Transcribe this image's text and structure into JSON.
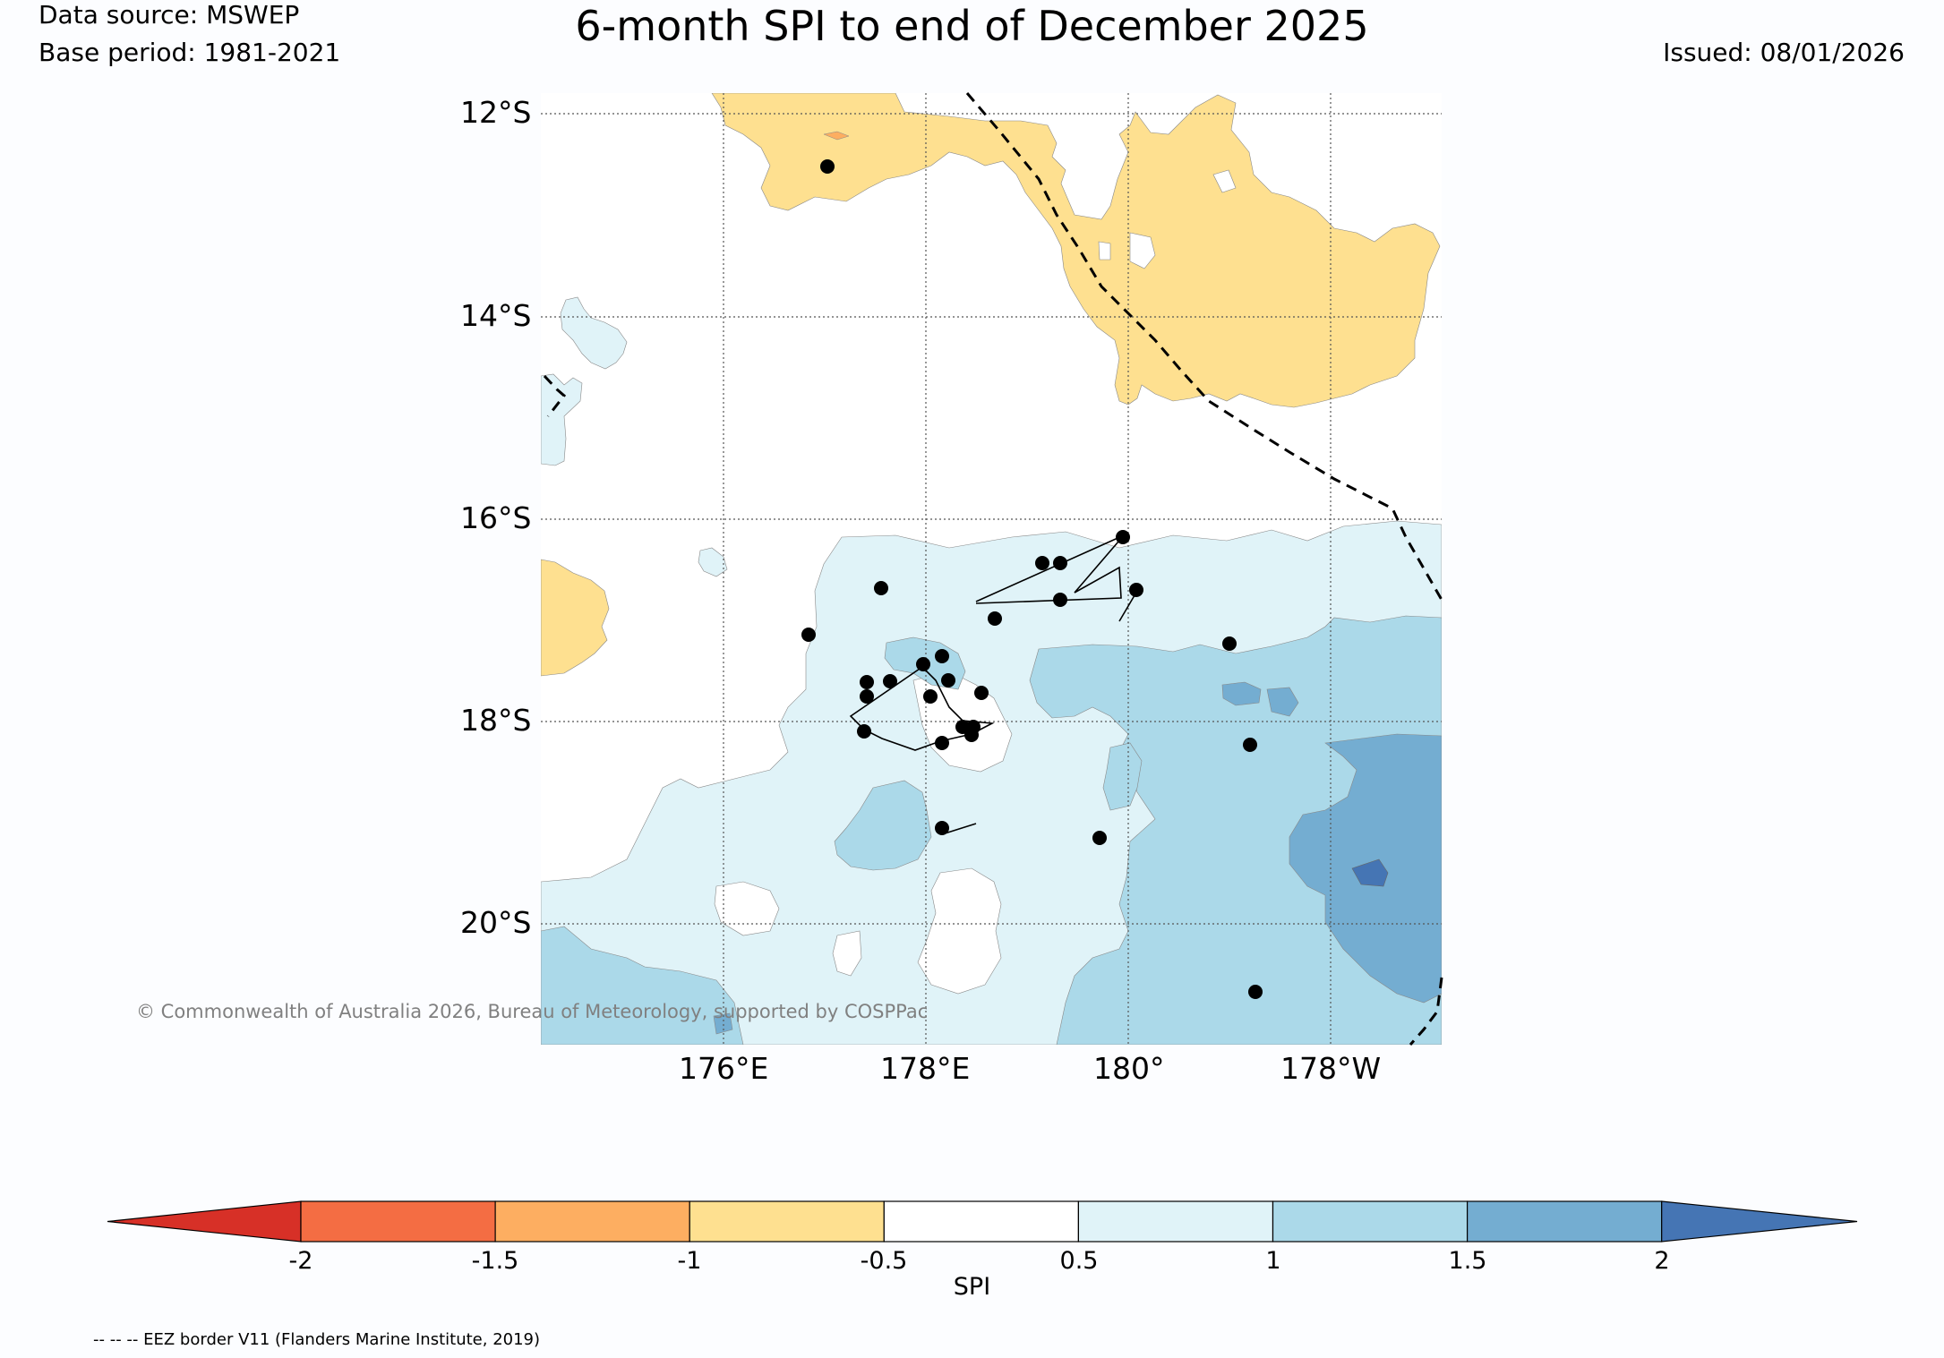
{
  "header": {
    "data_source": "Data source: MSWEP",
    "base_period": "Base period: 1981-2021",
    "title": "6-month SPI to end of December 2025",
    "issued": "Issued: 08/01/2026"
  },
  "map": {
    "lat_labels": [
      "12°S",
      "14°S",
      "16°S",
      "18°S",
      "20°S"
    ],
    "lon_labels": [
      "176°E",
      "178°E",
      "180°",
      "178°W"
    ],
    "copyright": "© Commonwealth of Australia 2026, Bureau of Meteorology, supported by COSPPac",
    "footnote": "-- -- -- EEZ border V11 (Flanders Marine Institute, 2019)"
  },
  "colorbar": {
    "label": "SPI",
    "ticks": [
      "-2",
      "-1.5",
      "-1",
      "-0.5",
      "0.5",
      "1",
      "1.5",
      "2"
    ],
    "colors": {
      "below_-2": "#d73027",
      "-2_-1.5": "#f46d43",
      "-1.5_-1": "#fdae61",
      "-1_-0.5": "#fee090",
      "-0.5_0.5": "#ffffff",
      "0.5_1": "#e0f3f8",
      "1_1.5": "#abd9e9",
      "1.5_2": "#74add1",
      "above_2": "#4575b4"
    }
  }
}
